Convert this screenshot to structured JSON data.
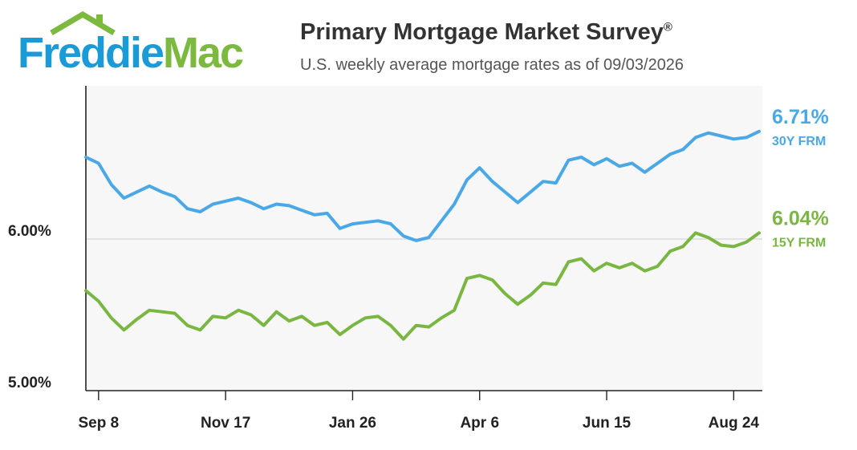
{
  "brand": {
    "logo_word_1": "Freddie",
    "logo_word_2": "Mac",
    "color_blue": "#1a9ad6",
    "color_green": "#7bb93f",
    "icon": "house-roof-icon"
  },
  "header": {
    "title": "Primary Mortgage Market Survey",
    "title_mark": "®",
    "subtitle": "U.S. weekly average mortgage rates as of 09/03/2026"
  },
  "chart_data": {
    "type": "line",
    "title": "Primary Mortgage Market Survey®",
    "subtitle": "U.S. weekly average mortgage rates as of 09/03/2026",
    "xlabel": "",
    "ylabel": "",
    "ylim": [
      5.0,
      7.0
    ],
    "y_ticks": [
      {
        "value": 6.0,
        "label": "6.00%"
      },
      {
        "value": 5.0,
        "label": "5.00%"
      }
    ],
    "x_ticks": [
      {
        "index": 1,
        "label": "Sep 8"
      },
      {
        "index": 11,
        "label": "Nov 17"
      },
      {
        "index": 21,
        "label": "Jan 26"
      },
      {
        "index": 31,
        "label": "Apr 6"
      },
      {
        "index": 41,
        "label": "Jun 15"
      },
      {
        "index": 51,
        "label": "Aug 24"
      }
    ],
    "grid": {
      "horizontal_at": [
        6.0
      ],
      "background": "#f7f7f7"
    },
    "series": [
      {
        "name": "30Y FRM",
        "color": "#4aa8e6",
        "end_label": "6.71%",
        "values": [
          6.54,
          6.5,
          6.36,
          6.27,
          6.31,
          6.35,
          6.31,
          6.28,
          6.2,
          6.18,
          6.23,
          6.25,
          6.27,
          6.24,
          6.2,
          6.23,
          6.22,
          6.19,
          6.16,
          6.17,
          6.07,
          6.1,
          6.11,
          6.12,
          6.1,
          6.02,
          5.99,
          6.01,
          6.12,
          6.23,
          6.39,
          6.47,
          6.38,
          6.31,
          6.24,
          6.31,
          6.38,
          6.37,
          6.52,
          6.54,
          6.49,
          6.53,
          6.48,
          6.5,
          6.44,
          6.5,
          6.56,
          6.59,
          6.67,
          6.7,
          6.68,
          6.66,
          6.67,
          6.71
        ]
      },
      {
        "name": "15Y FRM",
        "color": "#7ab642",
        "end_label": "6.04%",
        "values": [
          5.66,
          5.59,
          5.48,
          5.4,
          5.47,
          5.53,
          5.52,
          5.51,
          5.43,
          5.4,
          5.49,
          5.48,
          5.53,
          5.5,
          5.43,
          5.52,
          5.46,
          5.49,
          5.43,
          5.45,
          5.37,
          5.43,
          5.48,
          5.49,
          5.43,
          5.34,
          5.43,
          5.42,
          5.48,
          5.53,
          5.74,
          5.76,
          5.73,
          5.64,
          5.57,
          5.63,
          5.71,
          5.7,
          5.85,
          5.87,
          5.79,
          5.84,
          5.81,
          5.84,
          5.79,
          5.82,
          5.92,
          5.95,
          6.04,
          6.01,
          5.96,
          5.95,
          5.98,
          6.04
        ]
      }
    ]
  }
}
